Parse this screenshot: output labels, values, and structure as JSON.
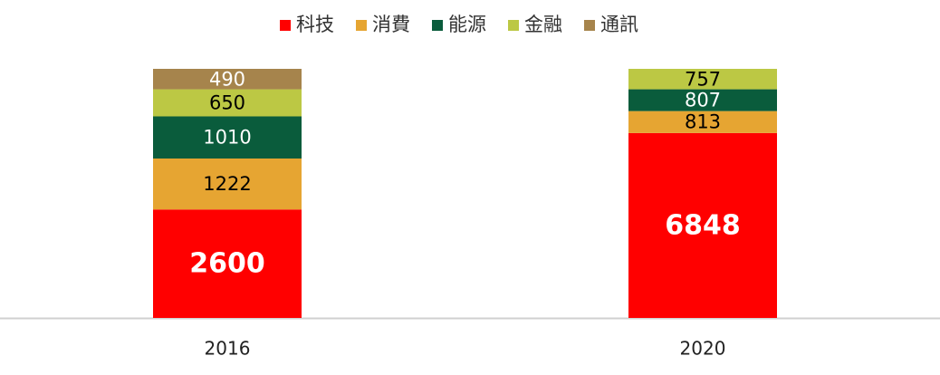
{
  "chart_data": {
    "type": "bar",
    "stacking": "percent",
    "categories": [
      "2016",
      "2020"
    ],
    "series": [
      {
        "name": "科技",
        "color": "#ff0000",
        "label_color": "#ffffff",
        "values": [
          2600,
          6848
        ]
      },
      {
        "name": "消費",
        "color": "#e6a532",
        "label_color": "#000000",
        "values": [
          1222,
          813
        ]
      },
      {
        "name": "能源",
        "color": "#0a5c3c",
        "label_color": "#ffffff",
        "values": [
          1010,
          807
        ]
      },
      {
        "name": "金融",
        "color": "#bcc844",
        "label_color": "#000000",
        "values": [
          650,
          757
        ]
      },
      {
        "name": "通訊",
        "color": "#a6844c",
        "label_color": "#ffffff",
        "values": [
          490,
          null
        ]
      }
    ],
    "legend": "top"
  }
}
